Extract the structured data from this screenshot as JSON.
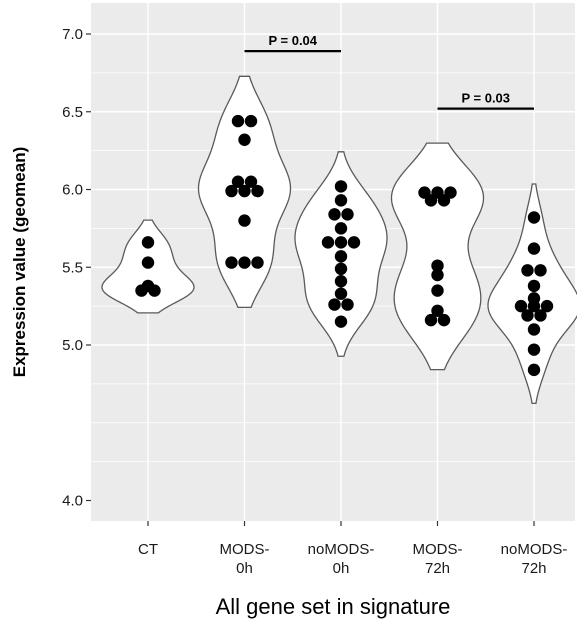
{
  "chart_data": {
    "type": "violin",
    "title": "",
    "xlabel": "All gene set in signature",
    "ylabel": "Expression value (geomean)",
    "ylim": [
      3.85,
      7.12
    ],
    "yticks": [
      "4.0",
      "5.0",
      "5.5",
      "6.0",
      "6.5",
      "7.0"
    ],
    "grid": true,
    "categories": [
      {
        "name": "CT",
        "label_lines": [
          "CT"
        ]
      },
      {
        "name": "MODS-0h",
        "label_lines": [
          "MODS-",
          "0h"
        ]
      },
      {
        "name": "noMODS-0h",
        "label_lines": [
          "noMODS-",
          "0h"
        ]
      },
      {
        "name": "MODS-72h",
        "label_lines": [
          "MODS-",
          "72h"
        ]
      },
      {
        "name": "noMODS-72h",
        "label_lines": [
          "noMODS-",
          "72h"
        ]
      }
    ],
    "groups": [
      {
        "name": "CT",
        "points": [
          5.66,
          5.53,
          5.38,
          5.35,
          5.35
        ]
      },
      {
        "name": "MODS-0h",
        "points": [
          6.44,
          6.44,
          6.32,
          6.05,
          6.05,
          5.99,
          5.99,
          5.99,
          5.8,
          5.53,
          5.53,
          5.53
        ]
      },
      {
        "name": "noMODS-0h",
        "points": [
          6.02,
          5.93,
          5.84,
          5.84,
          5.75,
          5.66,
          5.66,
          5.66,
          5.57,
          5.49,
          5.41,
          5.33,
          5.26,
          5.26,
          5.15
        ]
      },
      {
        "name": "MODS-72h",
        "points": [
          5.98,
          5.98,
          5.98,
          5.93,
          5.93,
          5.51,
          5.45,
          5.35,
          5.22,
          5.16,
          5.16
        ]
      },
      {
        "name": "noMODS-72h",
        "points": [
          5.82,
          5.62,
          5.48,
          5.48,
          5.38,
          5.3,
          5.25,
          5.25,
          5.25,
          5.19,
          5.19,
          5.1,
          4.97,
          4.84
        ]
      }
    ],
    "comparisons": [
      {
        "groups": [
          "MODS-0h",
          "noMODS-0h"
        ],
        "label": "P = 0.04",
        "y": 6.89
      },
      {
        "groups": [
          "MODS-72h",
          "noMODS-72h"
        ],
        "label": "P = 0.03",
        "y": 6.52
      }
    ]
  }
}
